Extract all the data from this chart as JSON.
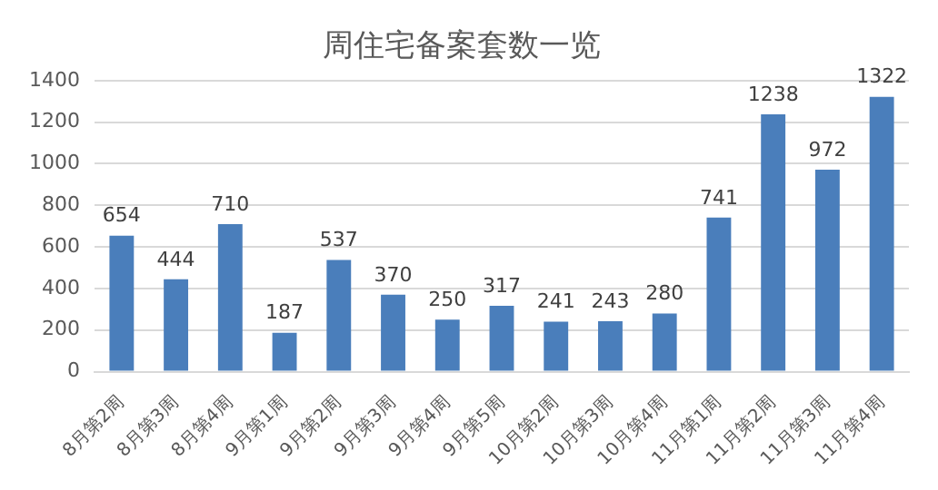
{
  "chart_data": {
    "type": "bar",
    "title": "周住宅备案套数一览",
    "categories": [
      "8月第2周",
      "8月第3周",
      "8月第4周",
      "9月第1周",
      "9月第2周",
      "9月第3周",
      "9月第4周",
      "9月第5周",
      "10月第2周",
      "10月第3周",
      "10月第4周",
      "11月第1周",
      "11月第2周",
      "11月第3周",
      "11月第4周"
    ],
    "values": [
      654,
      444,
      710,
      187,
      537,
      370,
      250,
      317,
      241,
      243,
      280,
      741,
      1238,
      972,
      1322
    ],
    "color": "#4a7ebb",
    "ylim": [
      0,
      1400
    ],
    "yticks": [
      0,
      200,
      400,
      600,
      800,
      1000,
      1200,
      1400
    ],
    "grid": "y",
    "data_labels": true
  }
}
